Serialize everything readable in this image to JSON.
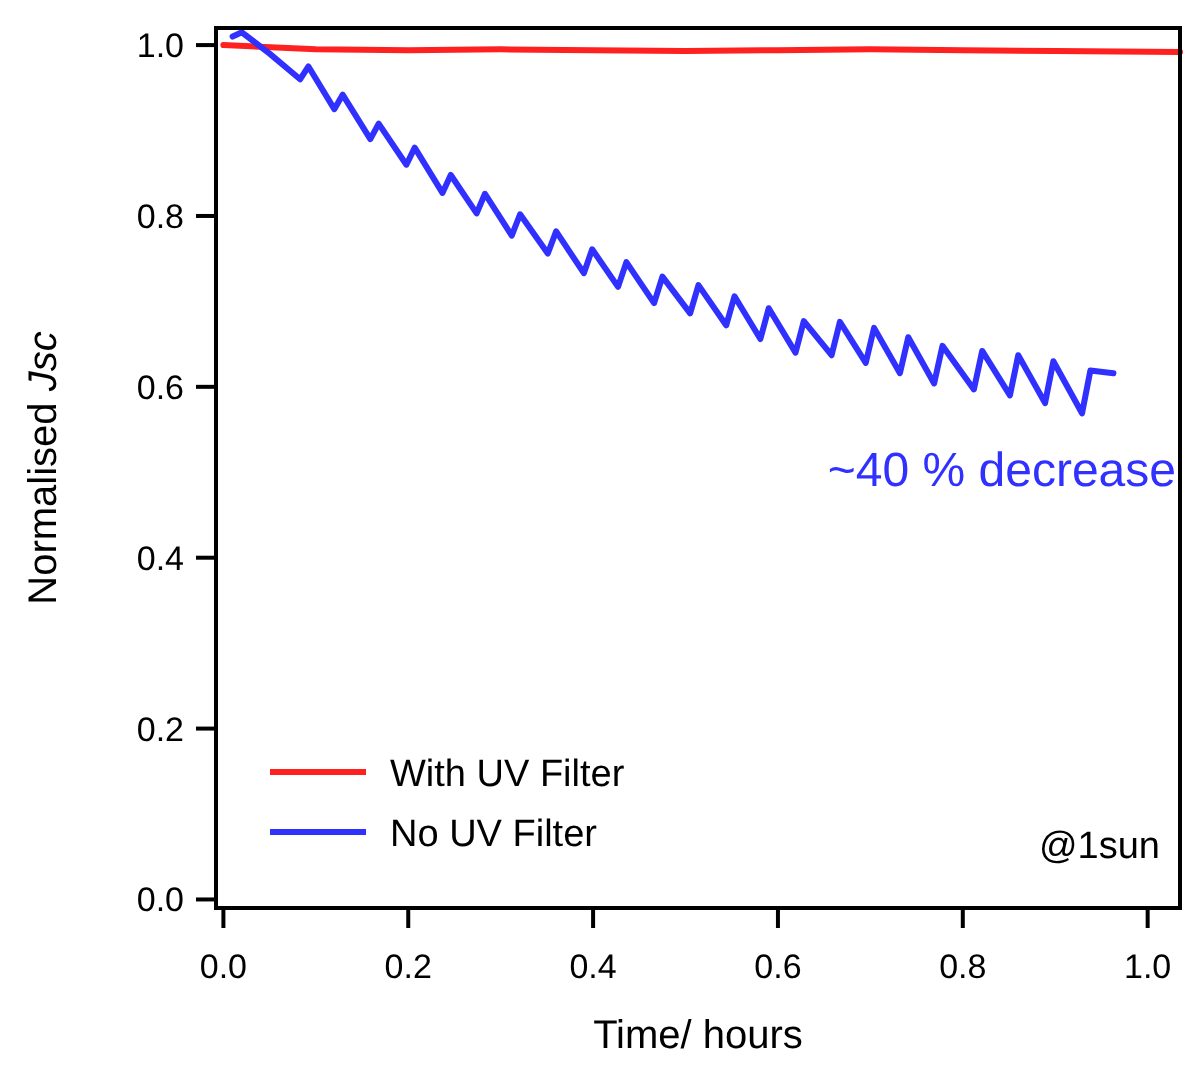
{
  "chart_data": {
    "type": "line",
    "xlabel": "Time/ hours",
    "ylabel": "Normalised Jsc",
    "xlim": [
      -0.008,
      1.035
    ],
    "ylim": [
      -0.01,
      1.02
    ],
    "xticks": [
      {
        "value": 0,
        "label": "0.0"
      },
      0.2,
      0.4,
      0.6,
      0.8,
      {
        "value": 1,
        "label": "1.0"
      }
    ],
    "yticks": [
      {
        "value": 0,
        "label": "0.0"
      },
      0.2,
      0.4,
      0.6,
      0.8,
      {
        "value": 1,
        "label": "1.0"
      }
    ],
    "legend": "bottom left",
    "grid": false,
    "series": [
      {
        "name": "With UV Filter",
        "color": "#ff2020",
        "x": [
          0.0,
          0.1,
          0.2,
          0.3,
          0.4,
          0.5,
          0.6,
          0.7,
          0.8,
          0.9,
          1.035
        ],
        "values": [
          1.0,
          0.995,
          0.994,
          0.995,
          0.994,
          0.993,
          0.994,
          0.995,
          0.994,
          0.993,
          0.992
        ]
      },
      {
        "name": "No UV Filter",
        "color": "#3030ff",
        "x": [
          0.01,
          0.02,
          0.05,
          0.083,
          0.092,
          0.12,
          0.129,
          0.159,
          0.168,
          0.198,
          0.207,
          0.237,
          0.246,
          0.274,
          0.283,
          0.312,
          0.321,
          0.351,
          0.36,
          0.39,
          0.399,
          0.427,
          0.436,
          0.466,
          0.475,
          0.505,
          0.514,
          0.544,
          0.553,
          0.581,
          0.59,
          0.619,
          0.628,
          0.658,
          0.667,
          0.695,
          0.704,
          0.732,
          0.741,
          0.769,
          0.778,
          0.812,
          0.821,
          0.851,
          0.86,
          0.889,
          0.898,
          0.929,
          0.938,
          0.963
        ],
        "values": [
          1.01,
          1.015,
          0.99,
          0.96,
          0.975,
          0.925,
          0.942,
          0.89,
          0.908,
          0.86,
          0.88,
          0.827,
          0.848,
          0.803,
          0.826,
          0.777,
          0.802,
          0.756,
          0.782,
          0.733,
          0.761,
          0.717,
          0.746,
          0.698,
          0.729,
          0.686,
          0.719,
          0.672,
          0.706,
          0.656,
          0.692,
          0.64,
          0.677,
          0.637,
          0.676,
          0.628,
          0.669,
          0.616,
          0.658,
          0.604,
          0.648,
          0.597,
          0.642,
          0.59,
          0.637,
          0.581,
          0.63,
          0.569,
          0.619,
          0.616
        ]
      }
    ],
    "annotations": [
      "~40 % decrease",
      "@1sun"
    ]
  }
}
